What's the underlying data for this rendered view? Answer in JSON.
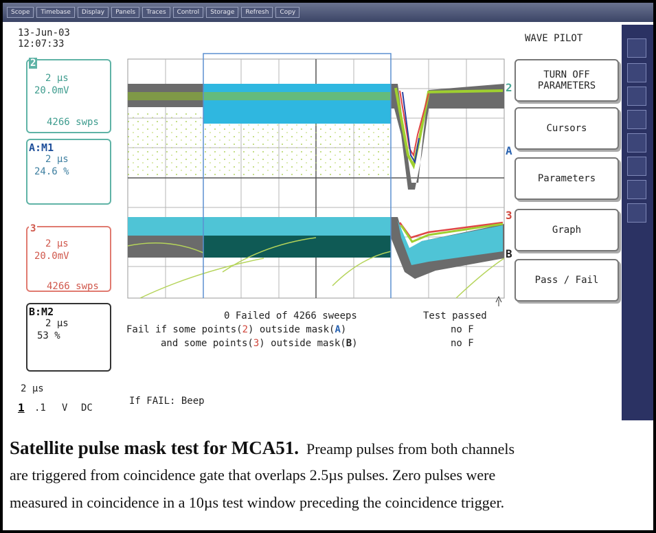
{
  "menu": {
    "items": [
      "Scope",
      "Timebase",
      "Display",
      "Panels",
      "Traces",
      "Control",
      "Storage",
      "Refresh",
      "Copy"
    ]
  },
  "status": {
    "date": "13-Jun-03",
    "time": "12:07:33"
  },
  "channels": [
    {
      "label": "2",
      "timebase": "2 µs",
      "scale": "20.0mV",
      "sweeps": "4266 swps"
    },
    {
      "label": "A:M1",
      "timebase": "2 µs",
      "scale": "24.6 %"
    },
    {
      "label": "3",
      "timebase": "2 µs",
      "scale": "20.0mV",
      "sweeps": "4266 swps"
    },
    {
      "label": "B:M2",
      "timebase": "2 µs",
      "scale": "53 %"
    }
  ],
  "trace_markers": [
    "2",
    "A",
    "3",
    "B"
  ],
  "mask_test": {
    "summary": "0 Failed of 4266 sweeps",
    "result": "Test passed",
    "conditions": [
      {
        "prefix": "Fail if some points(",
        "channel": "2",
        "middle": ") outside mask(",
        "mask": "A",
        "suffix": ")",
        "result": "no F"
      },
      {
        "prefix": "and some points(",
        "channel": "3",
        "middle": ") outside mask(",
        "mask": "B",
        "suffix": ")",
        "result": "no F"
      }
    ],
    "action": "If FAIL: Beep"
  },
  "footer": {
    "timebase": "2 µs",
    "channel": "1",
    "scale": ".1",
    "unit": "V",
    "coupling": "DC"
  },
  "panel": {
    "title": "WAVE PILOT",
    "buttons": [
      "TURN OFF PARAMETERS",
      "Cursors",
      "Parameters",
      "Graph",
      "Pass / Fail"
    ]
  },
  "caption": {
    "title": "Satellite pulse mask test for MCA51.",
    "lines": [
      "Preamp pulses from both channels",
      "are triggered from coincidence gate that overlaps 2.5µs pulses.  Zero pulses were",
      "measured in coincidence in a 10µs test window preceding the coincidence trigger."
    ]
  }
}
